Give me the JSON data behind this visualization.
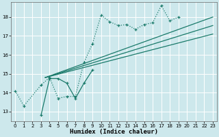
{
  "xlabel": "Humidex (Indice chaleur)",
  "background_color": "#cde8ec",
  "line_color": "#1a7a6a",
  "xlim": [
    -0.5,
    23.5
  ],
  "ylim": [
    12.5,
    18.8
  ],
  "yticks": [
    13,
    14,
    15,
    16,
    17,
    18
  ],
  "xticks": [
    0,
    1,
    2,
    3,
    4,
    5,
    6,
    7,
    8,
    9,
    10,
    11,
    12,
    13,
    14,
    15,
    16,
    17,
    18,
    19,
    20,
    21,
    22,
    23
  ],
  "dotted_x": [
    0,
    1,
    3,
    4,
    5,
    6,
    7,
    8,
    9,
    10,
    11,
    12,
    13,
    14,
    15,
    16,
    17,
    18,
    19
  ],
  "dotted_y": [
    14.1,
    13.3,
    14.4,
    14.8,
    13.7,
    13.8,
    13.8,
    15.6,
    16.6,
    18.1,
    17.75,
    17.55,
    17.6,
    17.35,
    17.6,
    17.7,
    18.6,
    17.8,
    18.0
  ],
  "solid_x": [
    3,
    4,
    5,
    6,
    7,
    8,
    9
  ],
  "solid_y": [
    12.8,
    14.75,
    14.75,
    14.5,
    13.7,
    14.5,
    15.2
  ],
  "reg_lines": [
    {
      "x0": 3.5,
      "y0": 14.8,
      "x1": 23,
      "y1": 18.0
    },
    {
      "x0": 3.5,
      "y0": 14.8,
      "x1": 23,
      "y1": 17.55
    },
    {
      "x0": 3.5,
      "y0": 14.8,
      "x1": 23,
      "y1": 17.1
    }
  ]
}
